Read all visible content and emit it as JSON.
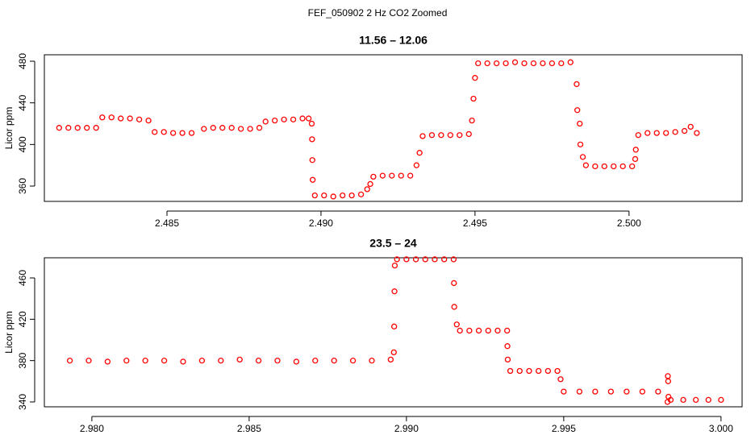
{
  "title": "FEF_050902  2 Hz CO2 Zoomed",
  "chart_data": [
    {
      "type": "scatter",
      "title": "11.56 – 12.06",
      "y_label": "Licor ppm",
      "color": "#ff0000",
      "x": [
        2.4815,
        2.4818,
        2.4821,
        2.4824,
        2.4827,
        2.4829,
        2.4832,
        2.4835,
        2.4838,
        2.4841,
        2.4844,
        2.4846,
        2.4849,
        2.4852,
        2.4855,
        2.4858,
        2.4862,
        2.4865,
        2.4868,
        2.4871,
        2.4874,
        2.4877,
        2.488,
        2.4882,
        2.4885,
        2.4888,
        2.4891,
        2.4894,
        2.4896,
        2.4897,
        2.48971,
        2.48972,
        2.48973,
        2.4898,
        2.4901,
        2.4904,
        2.4907,
        2.491,
        2.4913,
        2.4915,
        2.4916,
        2.4917,
        2.492,
        2.4923,
        2.4926,
        2.4929,
        2.4931,
        2.4932,
        2.4933,
        2.4936,
        2.4939,
        2.4942,
        2.4945,
        2.4948,
        2.4949,
        2.49495,
        2.495,
        2.4951,
        2.4954,
        2.4957,
        2.496,
        2.4963,
        2.4966,
        2.4969,
        2.4972,
        2.4975,
        2.4978,
        2.4981,
        2.4983,
        2.49832,
        2.4984,
        2.49842,
        2.4985,
        2.4986,
        2.4989,
        2.4992,
        2.4995,
        2.4998,
        2.5001,
        2.5002,
        2.50022,
        2.5003,
        2.5006,
        2.5009,
        2.5012,
        2.5015,
        2.5018,
        2.502,
        2.5022
      ],
      "y": [
        416,
        416,
        416,
        416,
        416,
        426,
        426,
        425,
        425,
        424,
        423,
        412,
        412,
        411,
        411,
        411,
        415,
        416,
        416,
        416,
        415,
        415,
        416,
        422,
        423,
        424,
        424,
        425,
        425,
        420,
        405,
        385,
        366,
        351,
        351,
        350,
        351,
        351,
        352,
        357,
        362,
        369,
        370,
        370,
        370,
        370,
        380,
        392,
        408,
        409,
        409,
        409,
        409,
        410,
        423,
        444,
        464,
        478,
        478,
        478,
        478,
        479,
        478,
        478,
        478,
        478,
        478,
        479,
        458,
        433,
        420,
        400,
        388,
        380,
        379,
        379,
        379,
        379,
        379,
        386,
        395,
        409,
        411,
        411,
        411,
        412,
        413,
        417,
        411
      ],
      "xlim": [
        2.48102,
        2.50367
      ],
      "ylim": [
        345.3,
        486.2
      ],
      "xticks": [
        2.485,
        {
          "value": 2.49,
          "label": "2.490"
        },
        2.495,
        {
          "value": 2.5,
          "label": "2.500"
        }
      ],
      "yticks": [
        360,
        400,
        440,
        480
      ]
    },
    {
      "type": "scatter",
      "title": "23.5 – 24",
      "y_label": "Licor ppm",
      "color": "#ff0000",
      "x": [
        2.9793,
        2.9799,
        2.9805,
        2.9811,
        2.9817,
        2.9823,
        2.9829,
        2.9835,
        2.9841,
        2.9847,
        2.9853,
        2.9859,
        2.9865,
        2.9871,
        2.9877,
        2.9883,
        2.9889,
        2.9895,
        2.9896,
        2.98961,
        2.98962,
        2.98963,
        2.9897,
        2.99,
        2.9903,
        2.9906,
        2.9909,
        2.9912,
        2.9915,
        2.99151,
        2.99152,
        2.9916,
        2.9917,
        2.992,
        2.9923,
        2.9926,
        2.9929,
        2.9932,
        2.99321,
        2.99322,
        2.9933,
        2.9936,
        2.9939,
        2.9942,
        2.9945,
        2.9948,
        2.9949,
        2.995,
        2.9955,
        2.996,
        2.9965,
        2.997,
        2.9975,
        2.998,
        2.9983,
        2.99831,
        2.99832,
        2.99833,
        2.9984,
        2.9988,
        2.9992,
        2.9996,
        3.0
      ],
      "y": [
        380,
        380,
        379,
        380,
        380,
        380,
        379,
        380,
        380,
        381,
        380,
        380,
        379,
        380,
        380,
        380,
        380,
        381,
        388,
        413,
        447,
        472,
        478,
        478,
        478,
        478,
        478,
        478,
        478,
        455,
        432,
        415,
        409,
        409,
        409,
        409,
        409,
        409,
        394,
        381,
        370,
        370,
        370,
        370,
        370,
        370,
        362,
        350,
        350,
        350,
        350,
        350,
        350,
        350,
        340,
        365,
        360,
        345,
        342,
        342,
        342,
        342,
        342
      ],
      "xlim": [
        2.97849,
        3.00067
      ],
      "ylim": [
        335.3,
        479.5
      ],
      "xticks": [
        {
          "value": 2.98,
          "label": "2.980"
        },
        2.985,
        {
          "value": 2.99,
          "label": "2.990"
        },
        2.995,
        {
          "value": 3.0,
          "label": "3.000"
        }
      ],
      "yticks": [
        340,
        380,
        420,
        460
      ]
    }
  ]
}
